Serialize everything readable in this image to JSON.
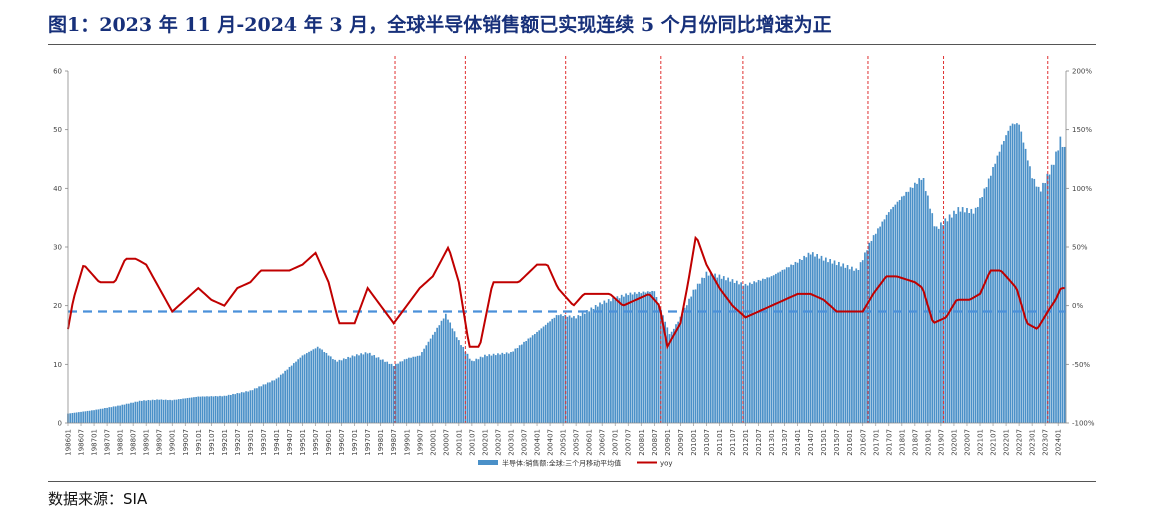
{
  "title": "图1：2023 年 11 月-2024 年 3 月，全球半导体销售额已实现连续 5 个月份同比增速为正",
  "source": "数据来源：SIA",
  "chart_data": {
    "type": "bar+line",
    "series": [
      {
        "name": "半导体:销售额:全球:三个月移动平均值",
        "type": "bar",
        "axis": "left",
        "color": "#4a90c8",
        "anchors": [
          [
            1986,
            1.6
          ],
          [
            1987,
            2.2
          ],
          [
            1988,
            3.0
          ],
          [
            1988.8,
            3.8
          ],
          [
            1989.5,
            4.0
          ],
          [
            1990,
            3.9
          ],
          [
            1991,
            4.5
          ],
          [
            1992,
            4.6
          ],
          [
            1993,
            5.5
          ],
          [
            1994,
            7.5
          ],
          [
            1995,
            11.5
          ],
          [
            1995.6,
            13.0
          ],
          [
            1996.3,
            10.5
          ],
          [
            1997,
            11.5
          ],
          [
            1997.5,
            12.0
          ],
          [
            1998.5,
            9.8
          ],
          [
            1999,
            11.0
          ],
          [
            1999.5,
            11.5
          ],
          [
            2000,
            15.0
          ],
          [
            2000.5,
            18.5
          ],
          [
            2001,
            14.0
          ],
          [
            2001.5,
            10.5
          ],
          [
            2002,
            11.5
          ],
          [
            2003,
            12.0
          ],
          [
            2004,
            15.5
          ],
          [
            2004.8,
            18.5
          ],
          [
            2005.5,
            18.0
          ],
          [
            2006.5,
            20.5
          ],
          [
            2007.5,
            22.0
          ],
          [
            2008.5,
            22.5
          ],
          [
            2009.1,
            15.0
          ],
          [
            2009.5,
            18.0
          ],
          [
            2010,
            22.5
          ],
          [
            2010.5,
            25.5
          ],
          [
            2011,
            25.0
          ],
          [
            2012,
            23.5
          ],
          [
            2013,
            25.0
          ],
          [
            2014,
            27.5
          ],
          [
            2014.5,
            29.0
          ],
          [
            2015,
            28.0
          ],
          [
            2016,
            26.5
          ],
          [
            2016.3,
            26.0
          ],
          [
            2016.8,
            31.0
          ],
          [
            2017.5,
            36.0
          ],
          [
            2018,
            38.5
          ],
          [
            2018.8,
            42.0
          ],
          [
            2019.3,
            33.0
          ],
          [
            2019.8,
            35.0
          ],
          [
            2020.2,
            36.5
          ],
          [
            2020.8,
            36.0
          ],
          [
            2021.3,
            41.0
          ],
          [
            2021.8,
            47.0
          ],
          [
            2022.2,
            51.0
          ],
          [
            2022.5,
            51.0
          ],
          [
            2023,
            42.0
          ],
          [
            2023.3,
            39.5
          ],
          [
            2023.8,
            44.0
          ],
          [
            2024.1,
            48.5
          ],
          [
            2024.25,
            46.5
          ]
        ]
      },
      {
        "name": "yoy",
        "type": "line",
        "axis": "right",
        "color": "#c00000",
        "anchors": [
          [
            1986,
            -20
          ],
          [
            1986.2,
            5
          ],
          [
            1986.6,
            35
          ],
          [
            1987.2,
            20
          ],
          [
            1987.8,
            20
          ],
          [
            1988.2,
            40
          ],
          [
            1988.6,
            40
          ],
          [
            1989,
            35
          ],
          [
            1989.5,
            15
          ],
          [
            1990,
            -5
          ],
          [
            1990.5,
            5
          ],
          [
            1991,
            15
          ],
          [
            1991.5,
            5
          ],
          [
            1992,
            0
          ],
          [
            1992.5,
            15
          ],
          [
            1993,
            20
          ],
          [
            1993.4,
            30
          ],
          [
            1993.8,
            30
          ],
          [
            1994.5,
            30
          ],
          [
            1995,
            35
          ],
          [
            1995.5,
            45
          ],
          [
            1996,
            20
          ],
          [
            1996.4,
            -15
          ],
          [
            1997,
            -15
          ],
          [
            1997.5,
            15
          ],
          [
            1998,
            0
          ],
          [
            1998.5,
            -15
          ],
          [
            1999,
            0
          ],
          [
            1999.5,
            15
          ],
          [
            2000,
            25
          ],
          [
            2000.6,
            50
          ],
          [
            2001,
            20
          ],
          [
            2001.4,
            -35
          ],
          [
            2001.8,
            -35
          ],
          [
            2002.3,
            20
          ],
          [
            2002.8,
            20
          ],
          [
            2003.3,
            20
          ],
          [
            2004,
            35
          ],
          [
            2004.4,
            35
          ],
          [
            2004.8,
            15
          ],
          [
            2005.4,
            0
          ],
          [
            2005.8,
            10
          ],
          [
            2006.4,
            10
          ],
          [
            2006.8,
            10
          ],
          [
            2007.3,
            0
          ],
          [
            2007.8,
            5
          ],
          [
            2008.3,
            10
          ],
          [
            2008.7,
            0
          ],
          [
            2009,
            -35
          ],
          [
            2009.5,
            -15
          ],
          [
            2009.8,
            20
          ],
          [
            2010.1,
            60
          ],
          [
            2010.5,
            35
          ],
          [
            2011,
            15
          ],
          [
            2011.5,
            0
          ],
          [
            2012,
            -10
          ],
          [
            2012.5,
            -5
          ],
          [
            2013,
            0
          ],
          [
            2013.5,
            5
          ],
          [
            2014,
            10
          ],
          [
            2014.5,
            10
          ],
          [
            2015,
            5
          ],
          [
            2015.5,
            -5
          ],
          [
            2016,
            -5
          ],
          [
            2016.5,
            -5
          ],
          [
            2016.9,
            10
          ],
          [
            2017.4,
            25
          ],
          [
            2017.8,
            25
          ],
          [
            2018.5,
            20
          ],
          [
            2018.8,
            15
          ],
          [
            2019.2,
            -15
          ],
          [
            2019.7,
            -10
          ],
          [
            2020.1,
            5
          ],
          [
            2020.6,
            5
          ],
          [
            2021,
            10
          ],
          [
            2021.4,
            30
          ],
          [
            2021.8,
            30
          ],
          [
            2022.4,
            15
          ],
          [
            2022.8,
            -15
          ],
          [
            2023.2,
            -20
          ],
          [
            2023.6,
            -5
          ],
          [
            2023.9,
            5
          ],
          [
            2024.1,
            15
          ],
          [
            2024.25,
            15
          ]
        ]
      }
    ],
    "x_tick_labels": [
      "198601",
      "198607",
      "198701",
      "198707",
      "198801",
      "198807",
      "198901",
      "198907",
      "199001",
      "199007",
      "199101",
      "199107",
      "199201",
      "199207",
      "199301",
      "199307",
      "199401",
      "199407",
      "199501",
      "199507",
      "199601",
      "199607",
      "199701",
      "199707",
      "199801",
      "199807",
      "199901",
      "199907",
      "200001",
      "200007",
      "200101",
      "200107",
      "200201",
      "200207",
      "200301",
      "200307",
      "200401",
      "200407",
      "200501",
      "200507",
      "200601",
      "200607",
      "200701",
      "200707",
      "200801",
      "200807",
      "200901",
      "200907",
      "201001",
      "201007",
      "201101",
      "201107",
      "201201",
      "201207",
      "201301",
      "201307",
      "201401",
      "201407",
      "201501",
      "201507",
      "201601",
      "201607",
      "201701",
      "201707",
      "201801",
      "201807",
      "201901",
      "201907",
      "202001",
      "202007",
      "202101",
      "202107",
      "202201",
      "202207",
      "202301",
      "202307",
      "202401"
    ],
    "y_left": {
      "ylim": [
        0,
        60
      ],
      "ticks": [
        "0",
        "10",
        "20",
        "30",
        "40",
        "50",
        "60"
      ]
    },
    "y_right": {
      "ylim": [
        -100,
        200
      ],
      "ticks": [
        "-100%",
        "-50%",
        "0%",
        "50%",
        "100%",
        "150%",
        "200%"
      ]
    },
    "reference_line": {
      "axis": "left",
      "value": 19,
      "style": "dashed",
      "color": "#4a90d9"
    },
    "vertical_markers": [
      1998.55,
      2001.25,
      2005.1,
      2008.75,
      2011.9,
      2016.7,
      2019.6,
      2023.6
    ],
    "legend": {
      "position": "bottom"
    }
  }
}
